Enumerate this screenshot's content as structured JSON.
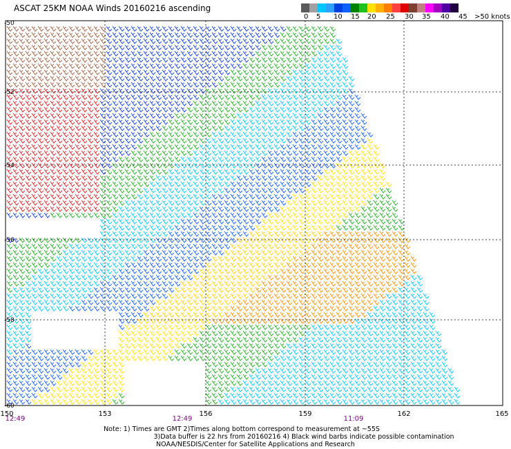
{
  "title": "ASCAT 25KM NOAA Winds 20160216 ascending",
  "legend": {
    "colors": [
      "#5a5a5a",
      "#a0a0a0",
      "#00c8ff",
      "#30a0ff",
      "#0040e0",
      "#1060ff",
      "#008000",
      "#20c020",
      "#ffe000",
      "#ffb000",
      "#ff8000",
      "#ff4040",
      "#e00000",
      "#804030",
      "#c08080",
      "#ff00ff",
      "#a000c0",
      "#5000a0",
      "#200040"
    ],
    "labels": [
      "0",
      "5",
      "10",
      "15",
      "20",
      "25",
      "30",
      "35",
      "40",
      "45",
      ">50 knots"
    ]
  },
  "axes": {
    "lon_ticks": [
      "150",
      "153",
      "156",
      "159",
      "162",
      "165"
    ],
    "lat_ticks": [
      "-50",
      "-52",
      "-54",
      "-56",
      "-58",
      "-60"
    ],
    "times": [
      "12:49",
      "12:49",
      "11:09"
    ]
  },
  "colors": {
    "time_text": "#800080",
    "grid": "#000000"
  },
  "notes": {
    "line1": "Note: 1) Times are GMT 2)Times along bottom correspond to measurement at ~55S",
    "line2": "3)Data buffer is 22 hrs from 20160216 4) Black wind barbs indicate possible contamination",
    "line3": "NOAA/NESDIS/Center for Satellite Applications and Research"
  }
}
